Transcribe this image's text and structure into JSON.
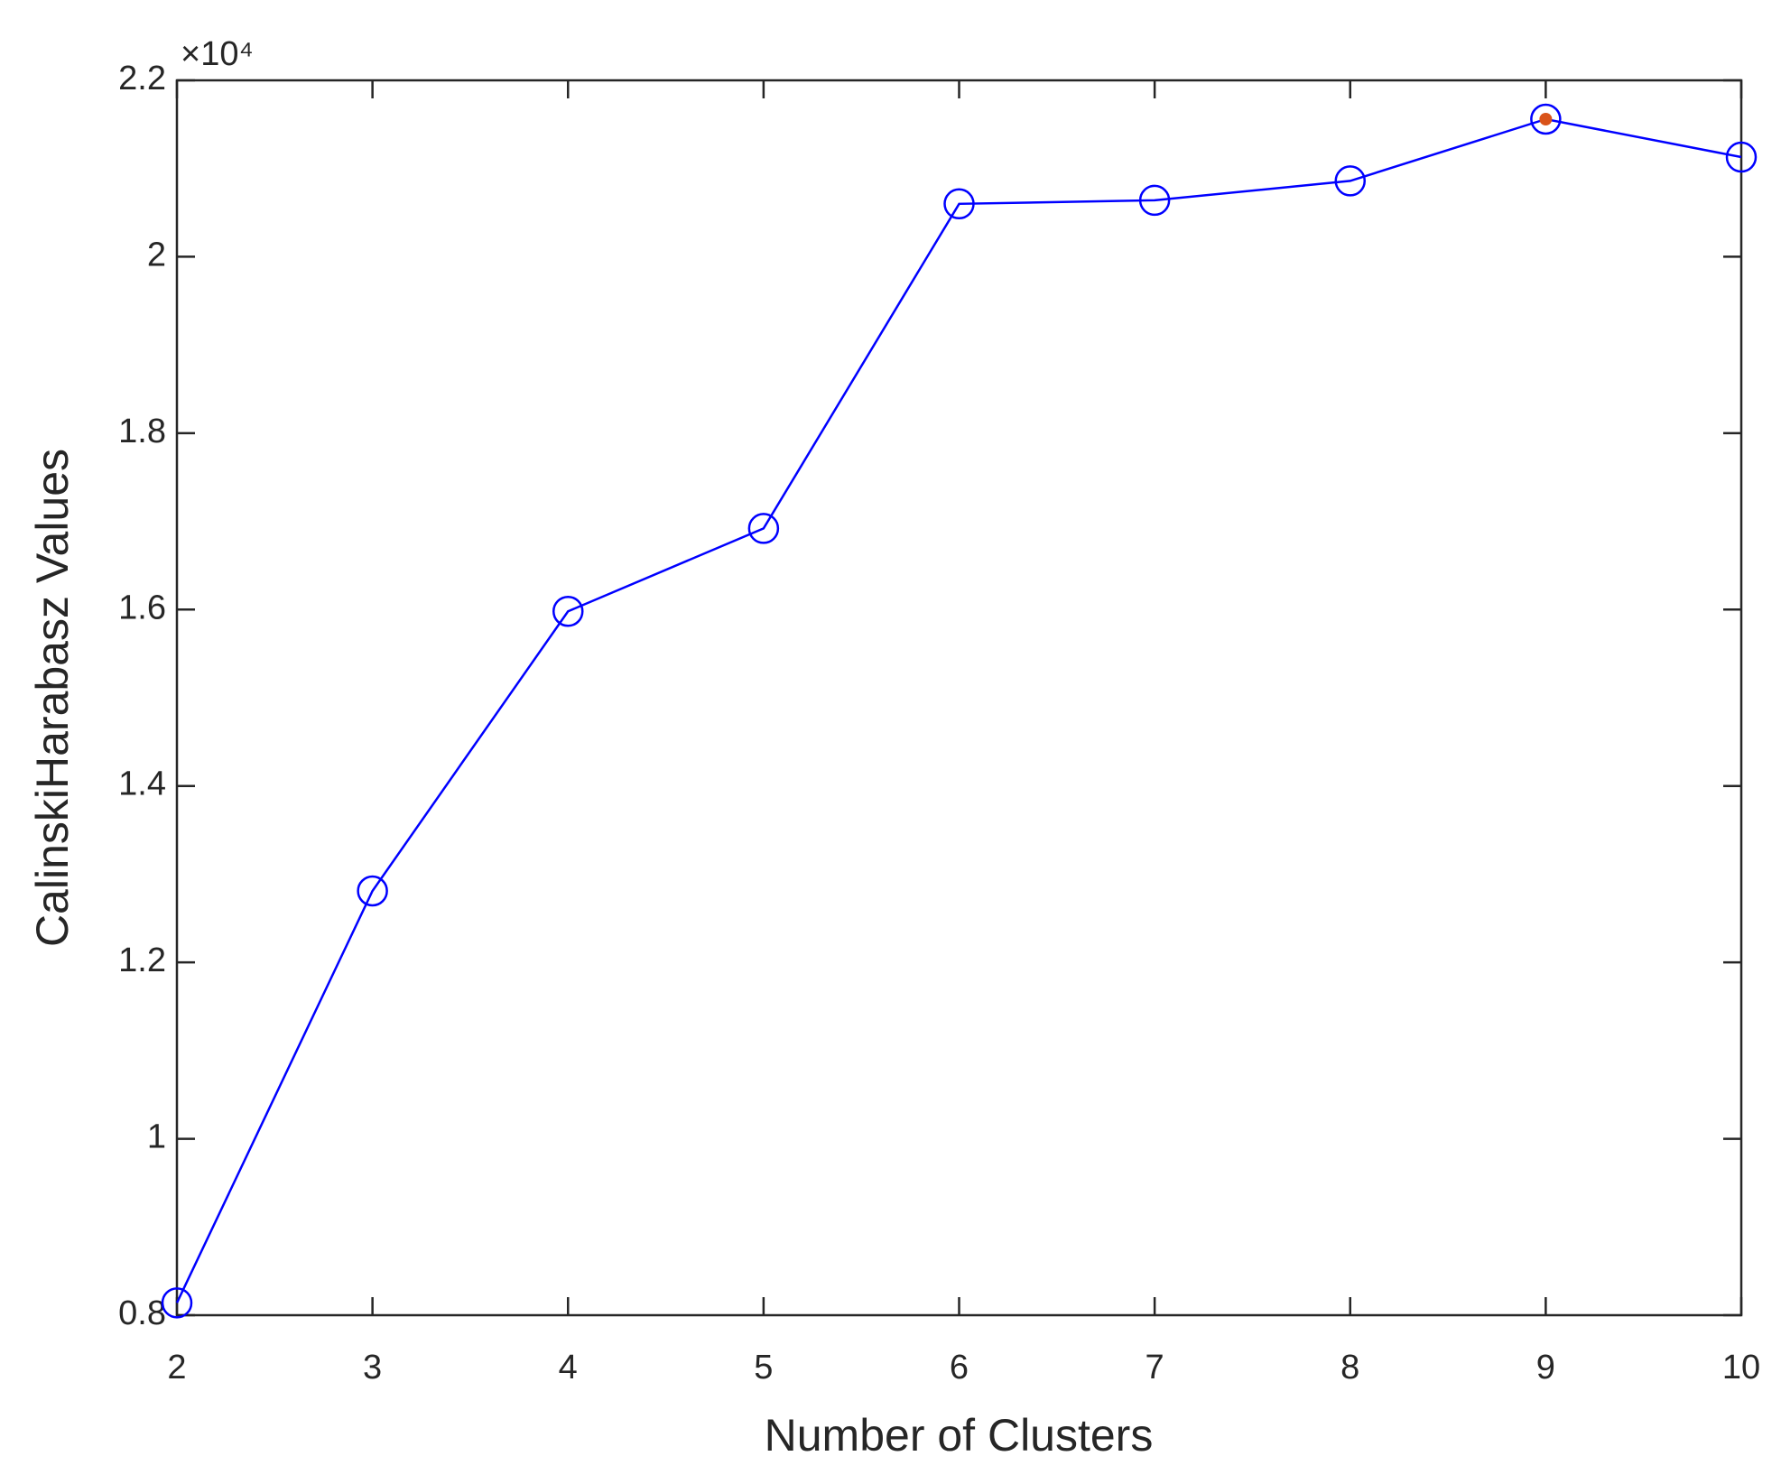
{
  "chart_data": {
    "type": "line",
    "x_label": "Number of Clusters",
    "y_label": "CalinskiHarabasz Values",
    "y_multiplier": "×10⁴",
    "x": [
      2,
      3,
      4,
      5,
      6,
      7,
      8,
      9,
      10
    ],
    "series": [
      {
        "color": "#0000ff",
        "values": [
          0.814,
          1.281,
          1.598,
          1.692,
          2.06,
          2.064,
          2.086,
          2.156,
          2.113
        ]
      }
    ],
    "highlight": {
      "x": 9,
      "value": 2.156,
      "color": "#d95319"
    },
    "xlim": [
      2,
      10
    ],
    "xticks": [
      2,
      3,
      4,
      5,
      6,
      7,
      8,
      9,
      10
    ],
    "ylim": [
      0.8,
      2.2
    ],
    "yticks": [
      0.8,
      1,
      1.2,
      1.4,
      1.6,
      1.8,
      2,
      2.2
    ],
    "grid": false
  }
}
